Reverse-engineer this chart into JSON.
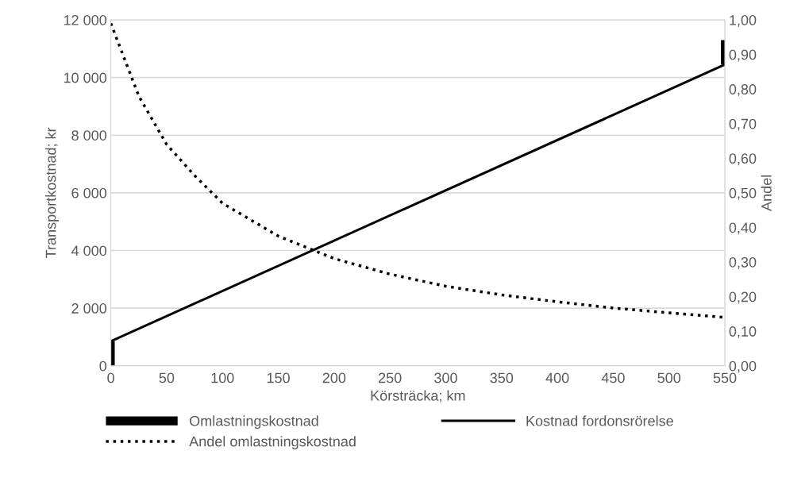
{
  "chart_data": {
    "type": "line",
    "xlabel": "Körsträcka; km",
    "ylabel": "Transportkostnad; kr",
    "y2label": "Andel",
    "xlim": [
      0,
      550
    ],
    "xticks": [
      0,
      50,
      100,
      150,
      200,
      250,
      300,
      350,
      400,
      450,
      500,
      550
    ],
    "ylim": [
      0,
      12000
    ],
    "yticks": [
      0,
      {
        "value": 2000,
        "label": "2 000"
      },
      {
        "value": 4000,
        "label": "4 000"
      },
      {
        "value": 6000,
        "label": "6 000"
      },
      {
        "value": 8000,
        "label": "8 000"
      },
      {
        "value": 10000,
        "label": "10 000"
      },
      {
        "value": 12000,
        "label": "12 000"
      }
    ],
    "y2lim": [
      0,
      1
    ],
    "y2ticks": [
      {
        "value": 0,
        "label": "0,00"
      },
      {
        "value": 0.1,
        "label": "0,10"
      },
      {
        "value": 0.2,
        "label": "0,20"
      },
      {
        "value": 0.3,
        "label": "0,30"
      },
      {
        "value": 0.4,
        "label": "0,40"
      },
      {
        "value": 0.5,
        "label": "0,50"
      },
      {
        "value": 0.6,
        "label": "0,60"
      },
      {
        "value": 0.7,
        "label": "0,70"
      },
      {
        "value": 0.8,
        "label": "0,80"
      },
      {
        "value": 0.9,
        "label": "0,90"
      },
      {
        "value": 1,
        "label": "1,00"
      }
    ],
    "grid": "y",
    "legend": "bottom",
    "series": [
      {
        "name": "Omlastningskostnad",
        "type": "bar",
        "x": [
          0,
          550
        ],
        "base": [
          0,
          10450
        ],
        "values": [
          850,
          850
        ],
        "color": "#000000"
      },
      {
        "name": "Kostnad fordonsrörelse",
        "x": [
          0,
          550
        ],
        "values": [
          850,
          10450
        ],
        "color": "#000000",
        "line_style": "solid"
      },
      {
        "name": "Andel omlastningskostnad",
        "axis": "y2",
        "x": [
          0,
          25,
          50,
          75,
          100,
          150,
          200,
          250,
          300,
          350,
          400,
          450,
          500,
          550
        ],
        "values": [
          0.99,
          0.78,
          0.64,
          0.55,
          0.47,
          0.375,
          0.31,
          0.265,
          0.23,
          0.205,
          0.185,
          0.167,
          0.153,
          0.14
        ],
        "color": "#000000",
        "line_style": "dotted"
      }
    ]
  }
}
